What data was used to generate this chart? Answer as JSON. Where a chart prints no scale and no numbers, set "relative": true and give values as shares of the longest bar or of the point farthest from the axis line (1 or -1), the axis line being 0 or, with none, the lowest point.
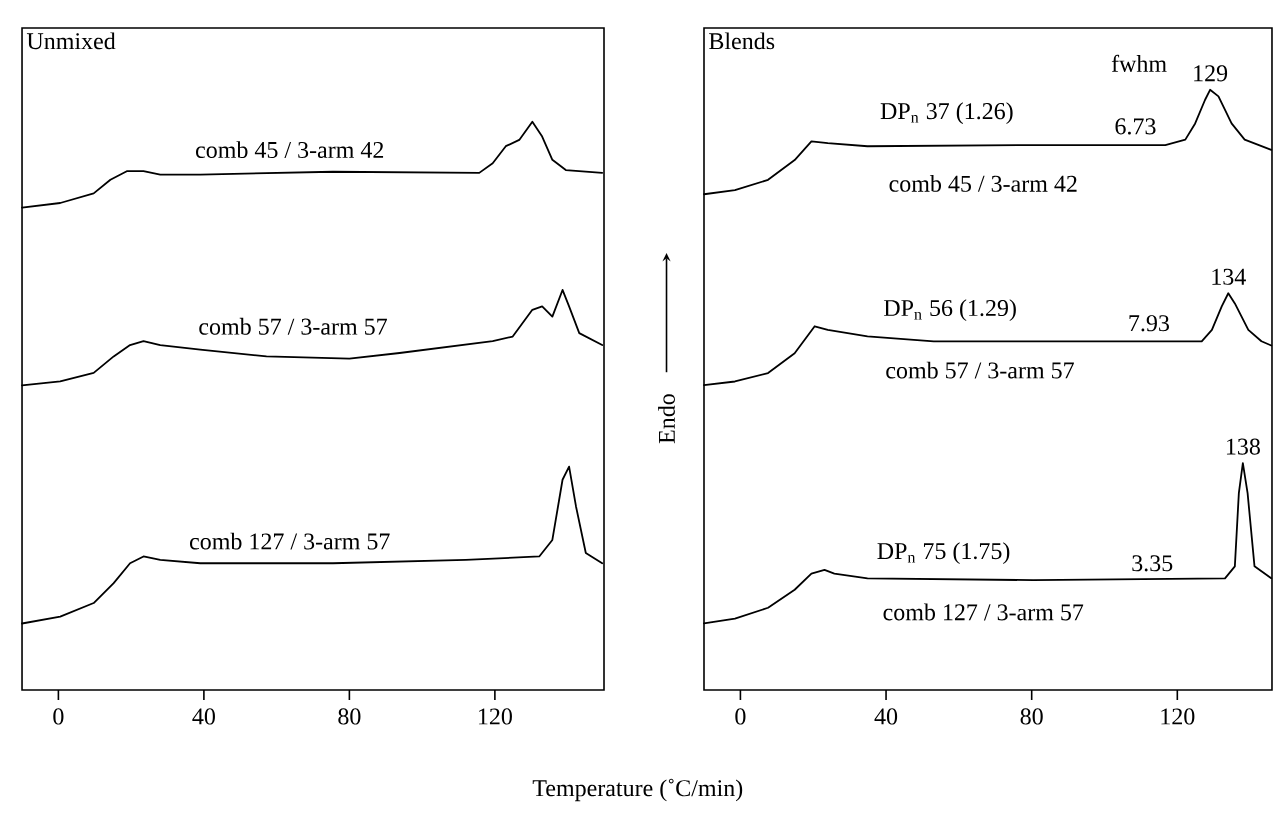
{
  "chart_data": [
    {
      "type": "line",
      "title": "Unmixed",
      "xlabel": "Temperature (˚C/min)",
      "relative": true,
      "xlim": [
        -10,
        150
      ],
      "xticks": [
        0,
        40,
        80,
        120
      ],
      "marker": "none",
      "line_style": "solid",
      "series": [
        {
          "name": "comb 45 / 3-arm 42",
          "color": "#000000",
          "x": [
            -10,
            0.5,
            9.7,
            14.3,
            18.8,
            23.4,
            28,
            39,
            75.5,
            115.7,
            119.4,
            123,
            126.7,
            130.3,
            133,
            135.8,
            139.5,
            149.5
          ],
          "values": [
            0.849,
            0.857,
            0.874,
            0.898,
            0.913,
            0.913,
            0.907,
            0.907,
            0.912,
            0.91,
            0.927,
            0.957,
            0.968,
            1.0,
            0.974,
            0.933,
            0.915,
            0.91
          ]
        },
        {
          "name": "comb 57 / 3-arm 57",
          "color": "#000000",
          "x": [
            -10,
            0.5,
            9.7,
            15.2,
            19.7,
            23.4,
            28,
            39,
            57.2,
            80,
            93.8,
            119.4,
            124.9,
            130.3,
            133,
            135.8,
            138.6,
            140.4,
            143.2,
            149.5
          ],
          "values": [
            0.536,
            0.543,
            0.558,
            0.587,
            0.607,
            0.614,
            0.607,
            0.599,
            0.587,
            0.583,
            0.593,
            0.614,
            0.622,
            0.669,
            0.675,
            0.657,
            0.704,
            0.675,
            0.628,
            0.607
          ]
        },
        {
          "name": "comb 127 / 3-arm 57",
          "color": "#000000",
          "x": [
            -10,
            0.5,
            9.7,
            15.2,
            19.7,
            23.4,
            28,
            39,
            75.5,
            112,
            132.2,
            135.8,
            138.6,
            140.4,
            142.3,
            145,
            149.5
          ],
          "values": [
            0.117,
            0.129,
            0.153,
            0.188,
            0.223,
            0.235,
            0.229,
            0.223,
            0.223,
            0.229,
            0.235,
            0.264,
            0.37,
            0.393,
            0.323,
            0.241,
            0.223
          ]
        }
      ]
    },
    {
      "type": "line",
      "title": "Blends",
      "ylabel": "Endo",
      "relative": true,
      "xlim": [
        -10,
        146
      ],
      "xticks": [
        0,
        40,
        80,
        120
      ],
      "marker": "none",
      "line_style": "solid",
      "annotations": [
        "fwhm",
        "DP$_{n}$ 37 (1.26)",
        "6.73",
        "DP$_{n}$ 56 (1.29)",
        "7.93",
        "DP$_{n}$ 75 (1.75)",
        "3.35",
        {
          "text": "129",
          "x": 129,
          "y": 1.0
        },
        {
          "text": "134",
          "x": 134,
          "y": 0.661
        },
        {
          "text": "138",
          "x": 138,
          "y": 0.378
        }
      ],
      "series": [
        {
          "name": "comb 45 / 3-arm 42",
          "color": "#000000",
          "x": [
            -10,
            -1.5,
            7.6,
            14.9,
            19.5,
            24,
            34.9,
            80.4,
            116.7,
            122.2,
            124.9,
            127.6,
            129,
            131.3,
            134.9,
            138.5,
            145.8
          ],
          "values": [
            0.826,
            0.833,
            0.85,
            0.883,
            0.914,
            0.911,
            0.906,
            0.908,
            0.908,
            0.917,
            0.944,
            0.983,
            1.0,
            0.989,
            0.944,
            0.917,
            0.9
          ]
        },
        {
          "name": "comb 57 / 3-arm 57",
          "color": "#000000",
          "x": [
            -10,
            -1.5,
            7.6,
            14.9,
            20.4,
            24,
            34.9,
            53.1,
            80.4,
            126.7,
            129.5,
            132.2,
            134,
            135.8,
            139.5,
            143.1,
            145.8
          ],
          "values": [
            0.508,
            0.514,
            0.528,
            0.561,
            0.606,
            0.6,
            0.589,
            0.581,
            0.581,
            0.581,
            0.6,
            0.639,
            0.661,
            0.644,
            0.6,
            0.581,
            0.574
          ]
        },
        {
          "name": "comb 127 / 3-arm 57",
          "color": "#000000",
          "x": [
            -10,
            -1.5,
            7.6,
            14.9,
            19.5,
            23.1,
            25.8,
            34.9,
            80.4,
            133.1,
            135.8,
            136.9,
            138,
            139.3,
            141.2,
            145.8
          ],
          "values": [
            0.111,
            0.119,
            0.137,
            0.167,
            0.194,
            0.2,
            0.194,
            0.186,
            0.183,
            0.186,
            0.206,
            0.328,
            0.378,
            0.328,
            0.206,
            0.186
          ]
        }
      ]
    }
  ]
}
